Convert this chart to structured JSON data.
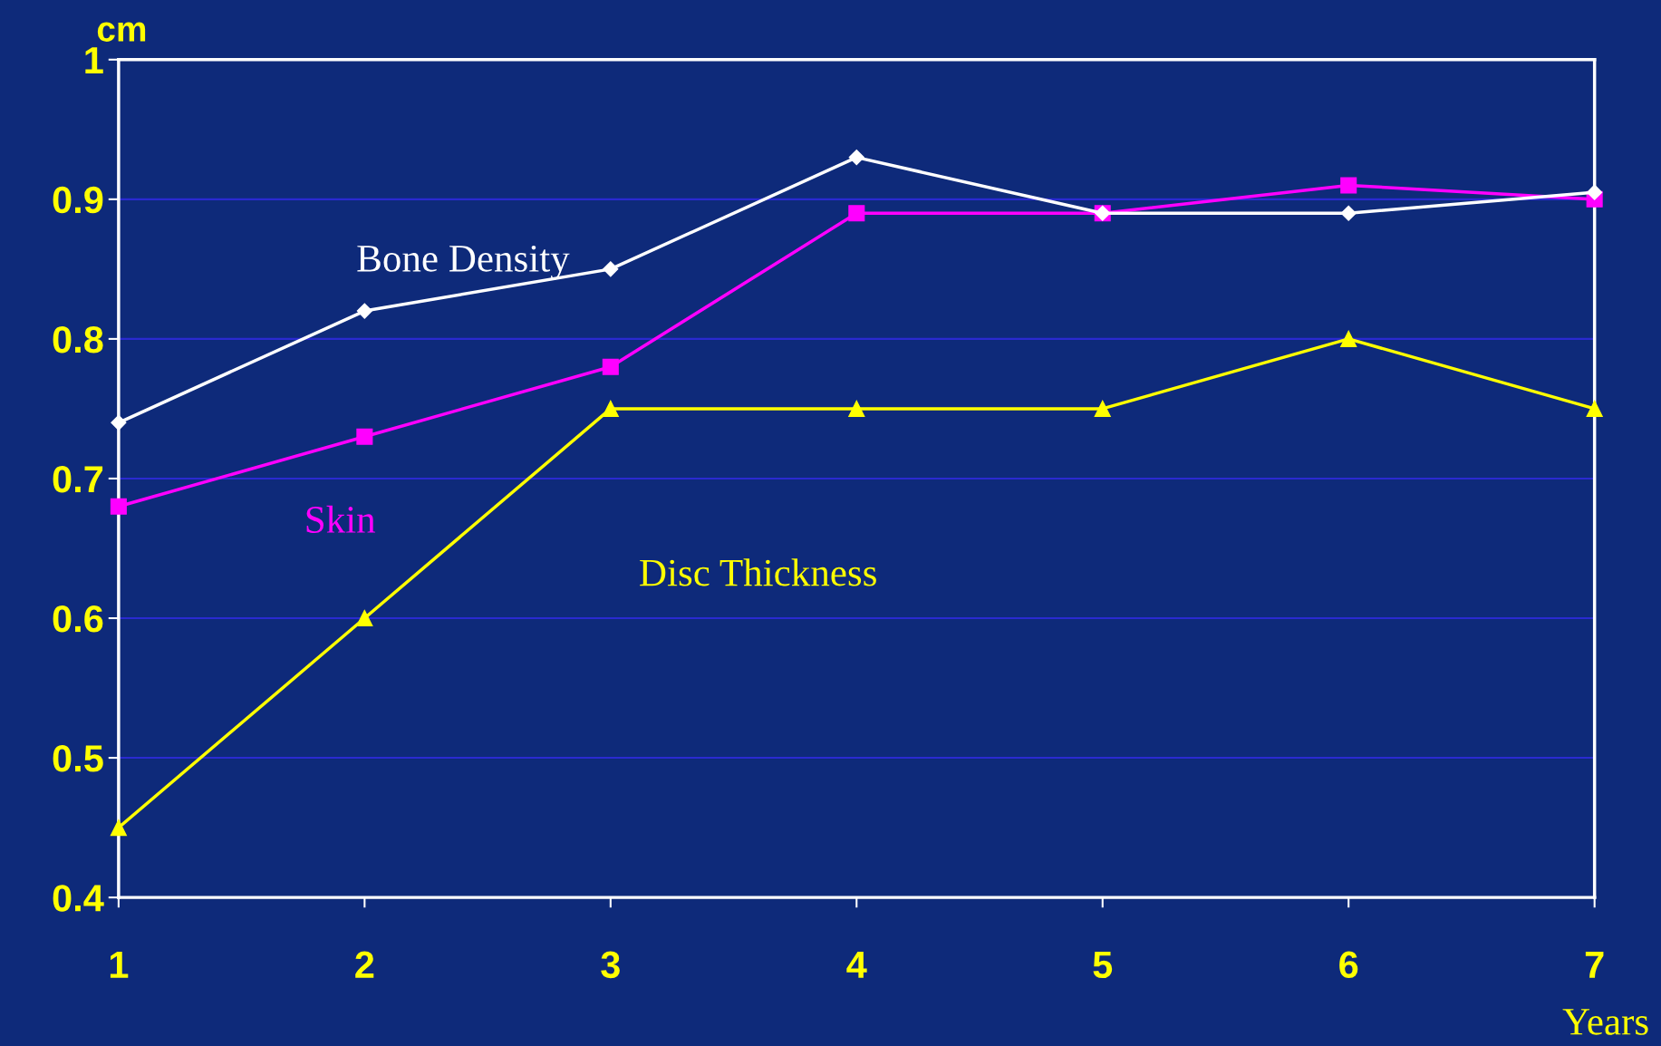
{
  "chart_data": {
    "type": "line",
    "ylabel": "cm",
    "xlabel": "Years",
    "x": [
      1,
      2,
      3,
      4,
      5,
      6,
      7
    ],
    "series": [
      {
        "name": "Bone Density",
        "color": "#ffffff",
        "marker": "diamond",
        "values": [
          0.74,
          0.82,
          0.85,
          0.93,
          0.89,
          0.89,
          0.905
        ]
      },
      {
        "name": "Skin",
        "color": "#ff00ff",
        "marker": "square",
        "values": [
          0.68,
          0.73,
          0.78,
          0.89,
          0.89,
          0.91,
          0.9
        ]
      },
      {
        "name": "Disc Thickness",
        "color": "#ffff00",
        "marker": "triangle",
        "values": [
          0.45,
          0.6,
          0.75,
          0.75,
          0.75,
          0.8,
          0.75
        ]
      }
    ],
    "xlim": [
      1,
      7
    ],
    "xticks": [
      1,
      2,
      3,
      4,
      5,
      6,
      7
    ],
    "ylim": [
      0.4,
      1
    ],
    "yticks": [
      0.4,
      0.5,
      0.6,
      0.7,
      0.8,
      0.9,
      1
    ],
    "grid": "y",
    "legend": false
  }
}
